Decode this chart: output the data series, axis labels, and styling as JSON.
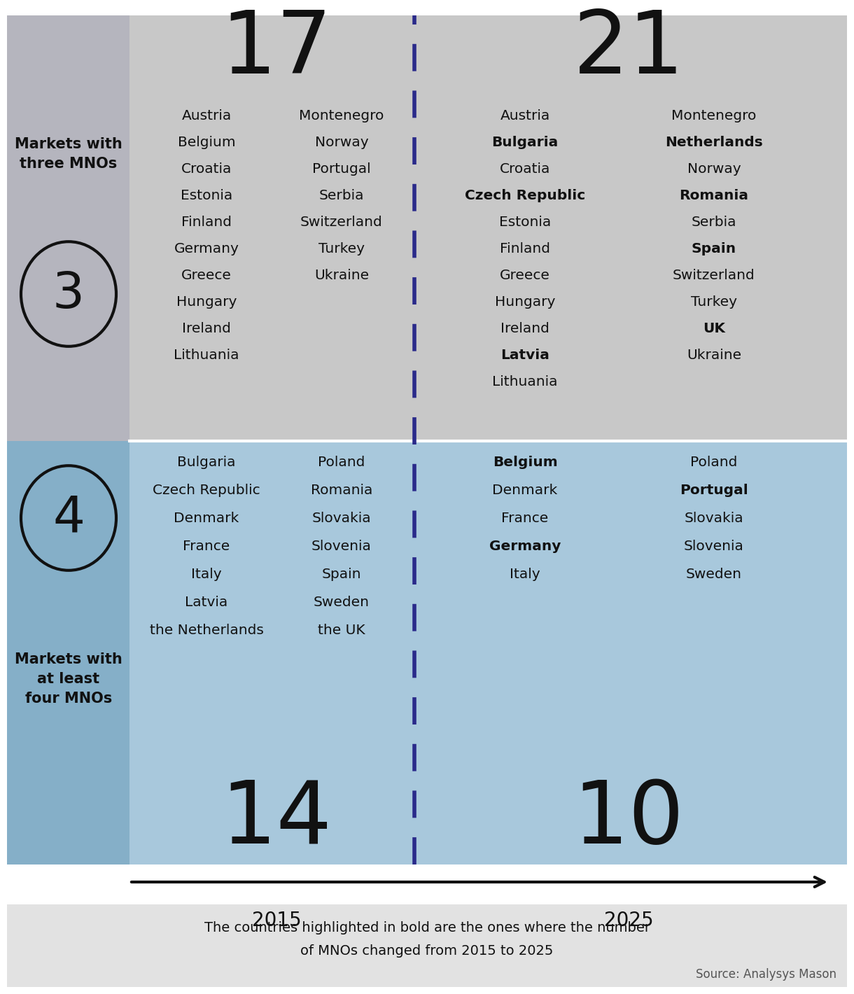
{
  "title_3mno_count_2015": "17",
  "title_3mno_count_2025": "21",
  "title_4mno_count_2015": "14",
  "title_4mno_count_2025": "10",
  "year_2015": "2015",
  "year_2025": "2025",
  "three_mno_2015_col1": [
    "Austria",
    "Belgium",
    "Croatia",
    "Estonia",
    "Finland",
    "Germany",
    "Greece",
    "Hungary",
    "Ireland",
    "Lithuania"
  ],
  "three_mno_2015_col2": [
    "Montenegro",
    "Norway",
    "Portugal",
    "Serbia",
    "Switzerland",
    "Turkey",
    "Ukraine"
  ],
  "three_mno_2025_col1": [
    "Austria",
    "Bulgaria",
    "Croatia",
    "Czech Republic",
    "Estonia",
    "Finland",
    "Greece",
    "Hungary",
    "Ireland",
    "Latvia",
    "Lithuania"
  ],
  "three_mno_2025_col1_bold": [
    "Bulgaria",
    "Czech Republic",
    "Latvia"
  ],
  "three_mno_2025_col2": [
    "Montenegro",
    "Netherlands",
    "Norway",
    "Romania",
    "Serbia",
    "Spain",
    "Switzerland",
    "Turkey",
    "UK",
    "Ukraine"
  ],
  "three_mno_2025_col2_bold": [
    "Netherlands",
    "Romania",
    "Spain",
    "UK"
  ],
  "four_mno_2015_col1": [
    "Bulgaria",
    "Czech Republic",
    "Denmark",
    "France",
    "Italy",
    "Latvia",
    "the Netherlands"
  ],
  "four_mno_2015_col2": [
    "Poland",
    "Romania",
    "Slovakia",
    "Slovenia",
    "Spain",
    "Sweden",
    "the UK"
  ],
  "four_mno_2025_col1": [
    "Belgium",
    "Denmark",
    "France",
    "Germany",
    "Italy"
  ],
  "four_mno_2025_col1_bold": [
    "Belgium",
    "Germany"
  ],
  "four_mno_2025_col2": [
    "Poland",
    "Portugal",
    "Slovakia",
    "Slovenia",
    "Sweden"
  ],
  "four_mno_2025_col2_bold": [
    "Portugal"
  ],
  "label_3": "3",
  "label_4": "4",
  "label_markets_three": "Markets with\nthree MNOs",
  "label_markets_four": "Markets with\nat least\nfour MNOs",
  "footnote_line1": "The countries highlighted in bold are the ones where the number",
  "footnote_line2": "of MNOs changed from 2015 to 2025",
  "source": "Source: Analysys Mason",
  "bg_gray_light": "#c8c8c8",
  "bg_gray_medium": "#b5b5be",
  "bg_blue_light": "#a8c8dc",
  "bg_blue_medium": "#85afc8",
  "bg_white": "#ffffff",
  "dashed_line_color": "#2a2a8a",
  "arrow_color": "#111111",
  "text_color": "#111111",
  "footnote_bg": "#e2e2e2"
}
